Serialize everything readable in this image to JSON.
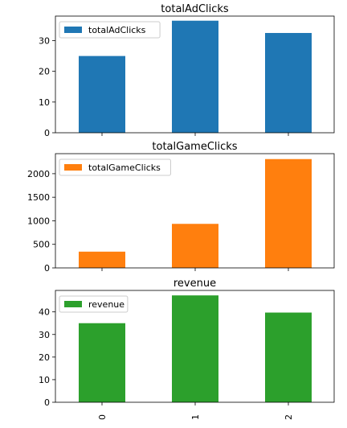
{
  "chart_data": [
    {
      "type": "bar",
      "title": "totalAdClicks",
      "categories": [
        "0",
        "1",
        "2"
      ],
      "series": [
        {
          "name": "totalAdClicks",
          "values": [
            25,
            36.5,
            32.5
          ]
        }
      ],
      "ylim": [
        0,
        38
      ],
      "yticks": [
        0,
        10,
        20,
        30
      ],
      "color": "#1f77b4",
      "legend": "top-left",
      "grid": false
    },
    {
      "type": "bar",
      "title": "totalGameClicks",
      "categories": [
        "0",
        "1",
        "2"
      ],
      "series": [
        {
          "name": "totalGameClicks",
          "values": [
            345,
            935,
            2310
          ]
        }
      ],
      "ylim": [
        0,
        2425
      ],
      "yticks": [
        0,
        500,
        1000,
        1500,
        2000
      ],
      "color": "#ff7f0e",
      "legend": "top-left",
      "grid": false
    },
    {
      "type": "bar",
      "title": "revenue",
      "categories": [
        "0",
        "1",
        "2"
      ],
      "series": [
        {
          "name": "revenue",
          "values": [
            35,
            47.3,
            39.7
          ]
        }
      ],
      "ylim": [
        0,
        49.5
      ],
      "yticks": [
        0,
        10,
        20,
        30,
        40
      ],
      "color": "#2ca02c",
      "legend": "top-left",
      "grid": false
    }
  ]
}
